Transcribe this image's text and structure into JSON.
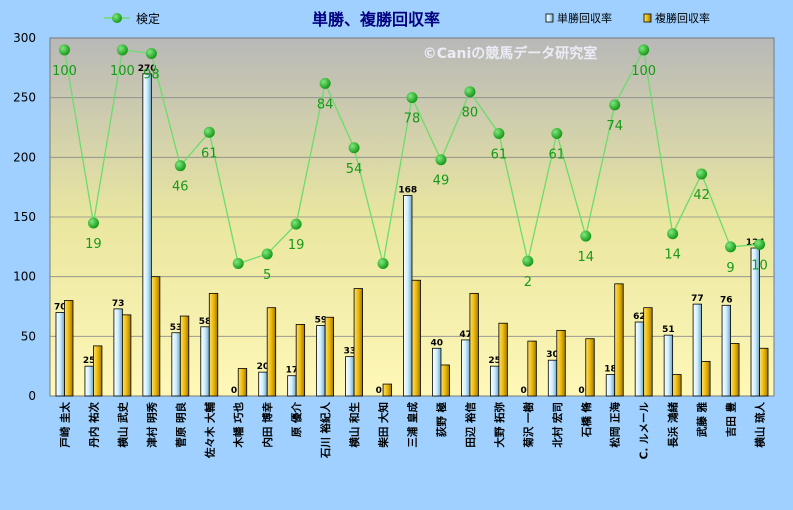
{
  "chart_data": {
    "type": "bar",
    "title": "単勝、複勝回収率",
    "watermark": "©Caniの競馬データ研究室",
    "ylim": [
      0,
      300
    ],
    "yticks": [
      0,
      50,
      100,
      150,
      200,
      250,
      300
    ],
    "legend": {
      "line_label": "検定",
      "bar1_label": "単勝回収率",
      "bar2_label": "複勝回収率"
    },
    "categories": [
      "戸崎 圭太",
      "丹内 祐次",
      "横山 武史",
      "津村 明秀",
      "菅原 明良",
      "佐々木 大輔",
      "木幡 巧也",
      "内田 博幸",
      "原 優介",
      "石川 裕紀人",
      "横山 和生",
      "柴田 大知",
      "三浦 皇成",
      "荻野 極",
      "田辺 裕信",
      "大野 拓弥",
      "菊沢 一樹",
      "北村 宏司",
      "石橋 脩",
      "松岡 正海",
      "C. ルメール",
      "長浜 鴻緒",
      "武藤 雅",
      "吉田 豊",
      "横山 琉人"
    ],
    "series": [
      {
        "name": "単勝回収率",
        "values": [
          70,
          25,
          73,
          270,
          53,
          58,
          0,
          20,
          17,
          59,
          33,
          0,
          168,
          40,
          47,
          25,
          0,
          30,
          0,
          18,
          62,
          51,
          77,
          76,
          124
        ]
      },
      {
        "name": "複勝回収率",
        "values": [
          80,
          42,
          68,
          100,
          67,
          86,
          23,
          74,
          60,
          66,
          90,
          10,
          97,
          26,
          86,
          61,
          46,
          55,
          48,
          94,
          74,
          18,
          29,
          44,
          40
        ]
      },
      {
        "name": "検定",
        "values": [
          290,
          145,
          290,
          287,
          193,
          221,
          111,
          119,
          144,
          262,
          208,
          111,
          250,
          198,
          255,
          220,
          113,
          220,
          134,
          244,
          290,
          136,
          186,
          125,
          127
        ]
      }
    ],
    "line_labels": [
      "100",
      "19",
      "100",
      "98",
      "46",
      "61",
      "",
      "5",
      "19",
      "84",
      "54",
      "",
      "78",
      "49",
      "80",
      "61",
      "2",
      "61",
      "14",
      "74",
      "100",
      "14",
      "42",
      "9",
      "10"
    ],
    "colors": {
      "bar1": "#d4f0ff",
      "bar2": "#f0c000",
      "line": "#6cdc6c",
      "marker": "#1aa81a",
      "label": "#179a17",
      "title": "#000080",
      "watermark": "#f2f2ff"
    }
  }
}
